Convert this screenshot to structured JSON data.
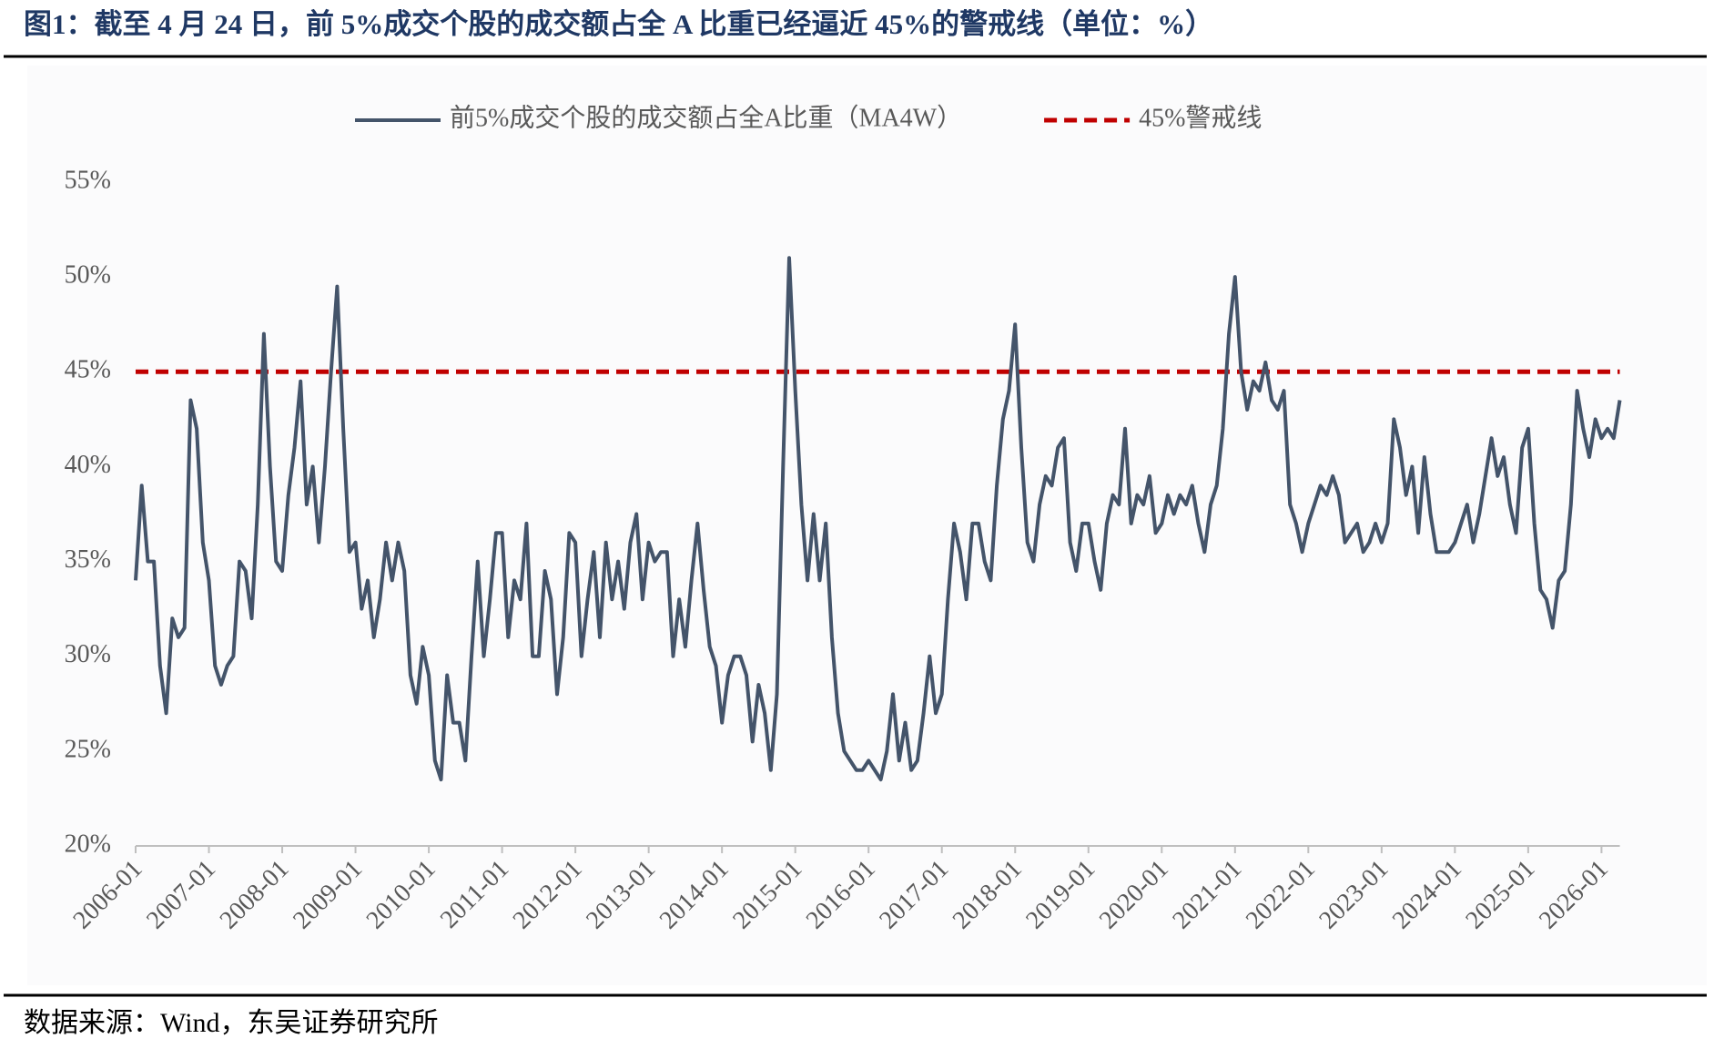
{
  "chart_data": {
    "type": "line",
    "title": "图1：截至 4 月 24 日，前 5%成交个股的成交额占全 A 比重已经逼近 45%的警戒线（单位：%）",
    "source": "数据来源：Wind，东吴证券研究所",
    "x": [
      "2006-01",
      "2006-02",
      "2006-03",
      "2006-04",
      "2006-05",
      "2006-06",
      "2006-07",
      "2006-08",
      "2006-09",
      "2006-10",
      "2006-11",
      "2006-12",
      "2007-01",
      "2007-02",
      "2007-03",
      "2007-04",
      "2007-05",
      "2007-06",
      "2007-07",
      "2007-08",
      "2007-09",
      "2007-10",
      "2007-11",
      "2007-12",
      "2008-01",
      "2008-02",
      "2008-03",
      "2008-04",
      "2008-05",
      "2008-06",
      "2008-07",
      "2008-08",
      "2008-09",
      "2008-10",
      "2008-11",
      "2008-12",
      "2009-01",
      "2009-02",
      "2009-03",
      "2009-04",
      "2009-05",
      "2009-06",
      "2009-07",
      "2009-08",
      "2009-09",
      "2009-10",
      "2009-11",
      "2009-12",
      "2010-01",
      "2010-02",
      "2010-03",
      "2010-04",
      "2010-05",
      "2010-06",
      "2010-07",
      "2010-08",
      "2010-09",
      "2010-10",
      "2010-11",
      "2010-12",
      "2011-01",
      "2011-02",
      "2011-03",
      "2011-04",
      "2011-05",
      "2011-06",
      "2011-07",
      "2011-08",
      "2011-09",
      "2011-10",
      "2011-11",
      "2011-12",
      "2012-01",
      "2012-02",
      "2012-03",
      "2012-04",
      "2012-05",
      "2012-06",
      "2012-07",
      "2012-08",
      "2012-09",
      "2012-10",
      "2012-11",
      "2012-12",
      "2013-01",
      "2013-02",
      "2013-03",
      "2013-04",
      "2013-05",
      "2013-06",
      "2013-07",
      "2013-08",
      "2013-09",
      "2013-10",
      "2013-11",
      "2013-12",
      "2014-01",
      "2014-02",
      "2014-03",
      "2014-04",
      "2014-05",
      "2014-06",
      "2014-07",
      "2014-08",
      "2014-09",
      "2014-10",
      "2014-11",
      "2014-12",
      "2015-01",
      "2015-02",
      "2015-03",
      "2015-04",
      "2015-05",
      "2015-06",
      "2015-07",
      "2015-08",
      "2015-09",
      "2015-10",
      "2015-11",
      "2015-12",
      "2016-01",
      "2016-02",
      "2016-03",
      "2016-04",
      "2016-05",
      "2016-06",
      "2016-07",
      "2016-08",
      "2016-09",
      "2016-10",
      "2016-11",
      "2016-12",
      "2017-01",
      "2017-02",
      "2017-03",
      "2017-04",
      "2017-05",
      "2017-06",
      "2017-07",
      "2017-08",
      "2017-09",
      "2017-10",
      "2017-11",
      "2017-12",
      "2018-01",
      "2018-02",
      "2018-03",
      "2018-04",
      "2018-05",
      "2018-06",
      "2018-07",
      "2018-08",
      "2018-09",
      "2018-10",
      "2018-11",
      "2018-12",
      "2019-01",
      "2019-02",
      "2019-03",
      "2019-04",
      "2019-05",
      "2019-06",
      "2019-07",
      "2019-08",
      "2019-09",
      "2019-10",
      "2019-11",
      "2019-12",
      "2020-01",
      "2020-02",
      "2020-03",
      "2020-04",
      "2020-05",
      "2020-06",
      "2020-07",
      "2020-08",
      "2020-09",
      "2020-10",
      "2020-11",
      "2020-12",
      "2021-01",
      "2021-02",
      "2021-03",
      "2021-04",
      "2021-05",
      "2021-06",
      "2021-07",
      "2021-08",
      "2021-09",
      "2021-10",
      "2021-11",
      "2021-12",
      "2022-01",
      "2022-02",
      "2022-03",
      "2022-04",
      "2022-05",
      "2022-06",
      "2022-07",
      "2022-08",
      "2022-09",
      "2022-10",
      "2022-11",
      "2022-12",
      "2023-01",
      "2023-02",
      "2023-03",
      "2023-04",
      "2023-05",
      "2023-06",
      "2023-07",
      "2023-08",
      "2023-09",
      "2023-10",
      "2023-11",
      "2023-12",
      "2024-01",
      "2024-02",
      "2024-03",
      "2024-04",
      "2024-05",
      "2024-06",
      "2024-07",
      "2024-08",
      "2024-09",
      "2024-10",
      "2024-11",
      "2024-12",
      "2025-01",
      "2025-02",
      "2025-03",
      "2025-04",
      "2025-05",
      "2025-06",
      "2025-07",
      "2025-08",
      "2025-09",
      "2025-10",
      "2025-11",
      "2025-12",
      "2026-01",
      "2026-02",
      "2026-03",
      "2026-04"
    ],
    "series": [
      {
        "name": "前5%成交个股的成交额占全A比重（MA4W）",
        "color": "#44546a",
        "values": [
          34,
          39,
          35,
          35,
          29.5,
          27,
          32,
          31,
          31.5,
          43.5,
          42,
          36,
          34,
          29.5,
          28.5,
          29.5,
          30,
          35,
          34.5,
          32,
          38,
          47,
          40,
          35,
          34.5,
          38.5,
          41,
          44.5,
          38,
          40,
          36,
          40,
          45,
          49.5,
          42,
          35.5,
          36,
          32.5,
          34,
          31,
          33,
          36,
          34,
          36,
          34.5,
          29,
          27.5,
          30.5,
          29,
          24.5,
          23.5,
          29,
          26.5,
          26.5,
          24.5,
          30,
          35,
          30,
          33,
          36.5,
          36.5,
          31,
          34,
          33,
          37,
          30,
          30,
          34.5,
          33,
          28,
          31,
          36.5,
          36,
          30,
          33,
          35.5,
          31,
          36,
          33,
          35,
          32.5,
          36,
          37.5,
          33,
          36,
          35,
          35.5,
          35.5,
          30,
          33,
          30.5,
          34,
          37,
          33.5,
          30.5,
          29.5,
          26.5,
          29,
          30,
          30,
          29,
          25.5,
          28.5,
          27,
          24,
          28,
          40,
          51,
          44,
          38,
          34,
          37.5,
          34,
          37,
          31,
          27,
          25,
          24.5,
          24,
          24,
          24.5,
          24,
          23.5,
          25,
          28,
          24.5,
          26.5,
          24,
          24.5,
          27,
          30,
          27,
          28,
          33,
          37,
          35.5,
          33,
          37,
          37,
          35,
          34,
          39,
          42.5,
          44,
          47.5,
          41,
          36,
          35,
          38,
          39.5,
          39,
          41,
          41.5,
          36,
          34.5,
          37,
          37,
          35,
          33.5,
          37,
          38.5,
          38,
          42,
          37,
          38.5,
          38,
          39.5,
          36.5,
          37,
          38.5,
          37.5,
          38.5,
          38,
          39,
          37,
          35.5,
          38,
          39,
          42,
          47,
          50,
          45,
          43,
          44.5,
          44,
          45.5,
          43.5,
          43,
          44,
          38,
          37,
          35.5,
          37,
          38,
          39,
          38.5,
          39.5,
          38.5,
          36,
          36.5,
          37,
          35.5,
          36,
          37,
          36,
          37,
          42.5,
          41,
          38.5,
          40,
          36.5,
          40.5,
          37.5,
          35.5,
          35.5,
          35.5,
          36,
          37,
          38,
          36,
          37.5,
          39.5,
          41.5,
          39.5,
          40.5,
          38,
          36.5,
          41,
          42,
          37,
          33.5,
          33,
          31.5,
          34,
          34.5,
          38,
          44,
          42,
          40.5,
          42.5,
          41.5,
          42,
          41.5,
          43.5
        ]
      }
    ],
    "reference_lines": [
      {
        "name": "45%警戒线",
        "value": 45,
        "color": "#c00000",
        "style": "dashed"
      }
    ],
    "ylim": [
      20,
      55
    ],
    "yticks": [
      {
        "value": 20,
        "label": "20%"
      },
      {
        "value": 25,
        "label": "25%"
      },
      {
        "value": 30,
        "label": "30%"
      },
      {
        "value": 35,
        "label": "35%"
      },
      {
        "value": 40,
        "label": "40%"
      },
      {
        "value": 45,
        "label": "45%"
      },
      {
        "value": 50,
        "label": "50%"
      },
      {
        "value": 55,
        "label": "55%"
      }
    ],
    "xticks": [
      "2006-01",
      "2007-01",
      "2008-01",
      "2009-01",
      "2010-01",
      "2011-01",
      "2012-01",
      "2013-01",
      "2014-01",
      "2015-01",
      "2016-01",
      "2017-01",
      "2018-01",
      "2019-01",
      "2020-01",
      "2021-01",
      "2022-01",
      "2023-01",
      "2024-01",
      "2025-01",
      "2026-01"
    ],
    "legend": "top",
    "grid": false
  }
}
